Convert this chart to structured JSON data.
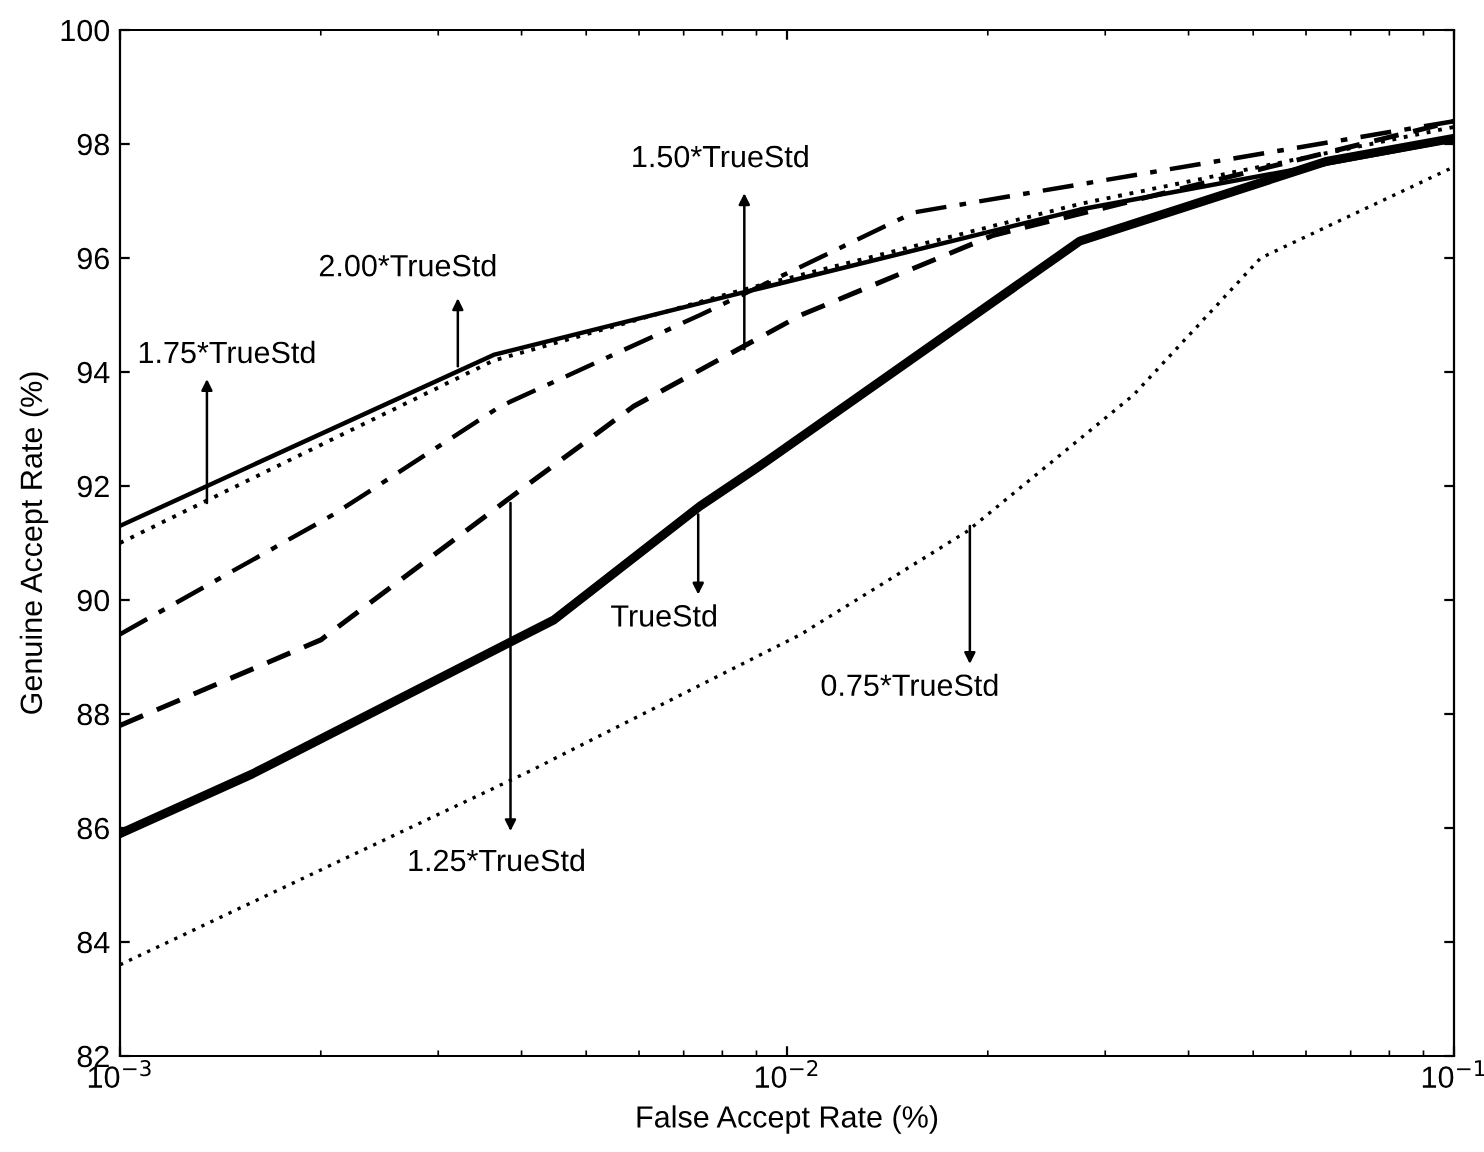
{
  "chart_data": {
    "type": "line",
    "xlabel": "False Accept Rate (%)",
    "ylabel": "Genuine Accept Rate (%)",
    "log": "x",
    "xlim": [
      0.001,
      0.1
    ],
    "xticks": [
      {
        "value": 0.001,
        "label": "10$^{−3}$"
      },
      {
        "value": 0.01,
        "label": "10$^{−2}$"
      },
      {
        "value": 0.1,
        "label": "10$^{−1}$"
      }
    ],
    "ylim": [
      82,
      100
    ],
    "yticks": [
      82,
      84,
      86,
      88,
      90,
      92,
      94,
      96,
      98,
      100
    ],
    "grid": false,
    "legend": false,
    "marker": "none",
    "series": [
      {
        "color": "#000000",
        "line_style": "solid",
        "x": [
          0.001,
          0.00363,
          0.00863,
          0.0275,
          0.1
        ],
        "values": [
          91.3,
          94.3,
          95.4,
          96.85,
          98.07
        ]
      },
      {
        "color": "#000000",
        "line_style": "dotted",
        "x": [
          0.001,
          0.00363,
          0.00863,
          0.0275,
          0.1
        ],
        "values": [
          91.0,
          94.2,
          95.45,
          96.95,
          98.3
        ]
      },
      {
        "color": "#000000",
        "line_style": "dashdot",
        "x": [
          0.001,
          0.00209,
          0.00372,
          0.00741,
          0.0155,
          0.1
        ],
        "values": [
          89.4,
          91.5,
          93.4,
          95.0,
          96.8,
          98.4
        ]
      },
      {
        "color": "#000000",
        "line_style": "dashed",
        "x": [
          0.001,
          0.002,
          0.0038,
          0.00589,
          0.0105,
          0.0204,
          0.1
        ],
        "values": [
          87.8,
          89.3,
          91.75,
          93.4,
          95.0,
          96.4,
          98.4
        ]
      },
      {
        "color": "#000000",
        "line_style": "solid",
        "x": [
          0.001,
          0.00158,
          0.00447,
          0.00741,
          0.0091,
          0.0275,
          0.0646,
          0.1
        ],
        "values": [
          85.9,
          86.95,
          89.65,
          91.65,
          92.35,
          96.3,
          97.7,
          98.1
        ]
      },
      {
        "color": "#000000",
        "line_style": "dotted",
        "x": [
          0.001,
          0.00412,
          0.0105,
          0.0186,
          0.0331,
          0.0513,
          0.1
        ],
        "values": [
          83.6,
          87.0,
          89.4,
          91.2,
          93.6,
          96.0,
          97.6
        ]
      }
    ],
    "annotations": [
      {
        "text": "1.75*TrueStd",
        "x": 0.00135,
        "y": 91.7
      },
      {
        "text": "2.00*TrueStd",
        "x": 0.00321,
        "y": 94.1
      },
      {
        "text": "1.50*TrueStd",
        "x": 0.00863,
        "y": 94.4
      },
      {
        "text": "TrueStd",
        "x": 0.00736,
        "y": 91.5
      },
      {
        "text": "1.25*TrueStd",
        "x": 0.00385,
        "y": 91.7
      },
      {
        "text": "0.75*TrueStd",
        "x": 0.0188,
        "y": 91.3
      }
    ]
  }
}
